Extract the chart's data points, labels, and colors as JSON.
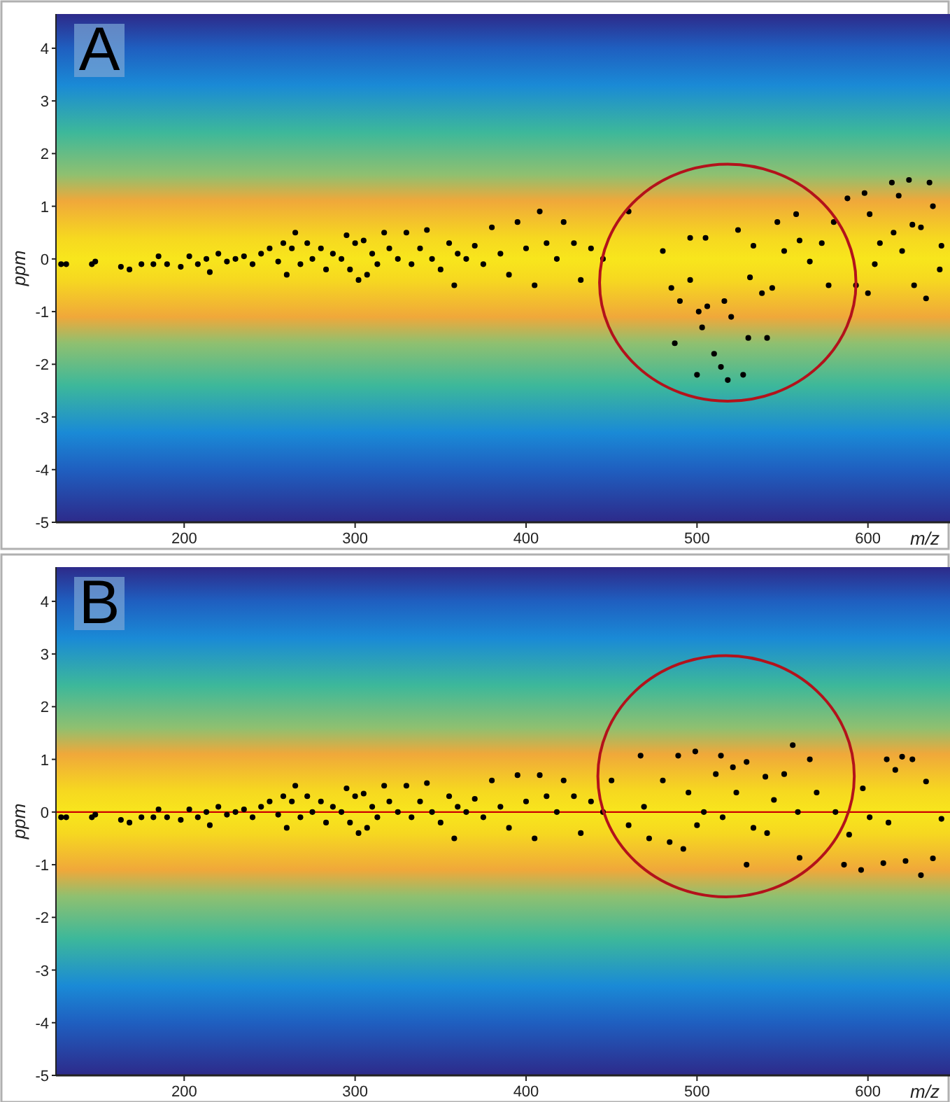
{
  "chart_data": [
    {
      "type": "scatter",
      "title": "A",
      "xlabel": "m/z",
      "ylabel": "ppm",
      "xlim": [
        125,
        648
      ],
      "ylim": [
        -5,
        4.65
      ],
      "xticks": [
        200,
        300,
        400,
        500,
        600
      ],
      "yticks": [
        -5,
        -4,
        -3,
        -2,
        -1,
        0,
        1,
        2,
        3,
        4
      ],
      "marker": "circle",
      "series": [
        {
          "color": "#000000",
          "x": [
            128,
            131,
            146,
            148,
            163,
            168,
            175,
            182,
            185,
            190,
            198,
            203,
            208,
            213,
            215,
            220,
            225,
            230,
            235,
            240,
            245,
            250,
            255,
            258,
            260,
            263,
            265,
            268,
            272,
            275,
            280,
            283,
            287,
            292,
            295,
            297,
            300,
            302,
            305,
            307,
            310,
            313,
            317,
            320,
            325,
            330,
            333,
            338,
            342,
            345,
            350,
            355,
            358,
            360,
            365,
            370,
            375,
            380,
            385,
            390,
            395,
            400,
            405,
            408,
            412,
            418,
            422,
            428,
            432,
            438,
            445,
            460,
            480,
            485,
            490,
            487,
            496,
            496,
            501,
            500,
            505,
            506,
            503,
            510,
            514,
            518,
            516,
            520,
            524,
            527,
            530,
            531,
            533,
            538,
            541,
            544,
            547,
            551,
            558,
            560,
            566,
            573,
            577,
            580,
            588,
            593,
            598,
            601,
            604,
            600,
            607,
            614,
            615,
            618,
            620,
            624,
            626,
            627,
            631,
            634,
            636,
            638,
            642,
            643
          ],
          "values": [
            -0.1,
            -0.1,
            -0.1,
            -0.05,
            -0.15,
            -0.2,
            -0.1,
            -0.1,
            0.05,
            -0.1,
            -0.15,
            0.05,
            -0.1,
            0,
            -0.25,
            0.1,
            -0.05,
            0,
            0.05,
            -0.1,
            0.1,
            0.2,
            -0.05,
            0.3,
            -0.3,
            0.2,
            0.5,
            -0.1,
            0.3,
            0,
            0.2,
            -0.2,
            0.1,
            0,
            0.45,
            -0.2,
            0.3,
            -0.4,
            0.35,
            -0.3,
            0.1,
            -0.1,
            0.5,
            0.2,
            0,
            0.5,
            -0.1,
            0.2,
            0.55,
            0,
            -0.2,
            0.3,
            -0.5,
            0.1,
            0,
            0.25,
            -0.1,
            0.6,
            0.1,
            -0.3,
            0.7,
            0.2,
            -0.5,
            0.9,
            0.3,
            0,
            0.7,
            0.3,
            -0.4,
            0.2,
            0,
            0.9,
            0.15,
            -0.55,
            -0.8,
            -1.6,
            0.4,
            -0.4,
            -1,
            -2.2,
            0.4,
            -0.9,
            -1.3,
            -1.8,
            -2.05,
            -2.3,
            -0.8,
            -1.1,
            0.55,
            -2.2,
            -1.5,
            -0.35,
            0.25,
            -0.65,
            -1.5,
            -0.55,
            0.7,
            0.15,
            0.85,
            0.35,
            -0.05,
            0.3,
            -0.5,
            0.7,
            1.15,
            -0.5,
            1.25,
            0.85,
            -0.1,
            -0.65,
            0.3,
            1.45,
            0.5,
            1.2,
            0.15,
            1.5,
            0.65,
            -0.5,
            0.6,
            -0.75,
            1.45,
            1,
            -0.2,
            0.25
          ]
        }
      ]
    },
    {
      "type": "scatter",
      "title": "B",
      "xlabel": "m/z",
      "ylabel": "ppm",
      "xlim": [
        125,
        648
      ],
      "ylim": [
        -5,
        4.65
      ],
      "xticks": [
        200,
        300,
        400,
        500,
        600
      ],
      "yticks": [
        -5,
        -4,
        -3,
        -2,
        -1,
        0,
        1,
        2,
        3,
        4
      ],
      "marker": "circle",
      "ref_lines": [
        {
          "axis": "y",
          "value": 0,
          "color": "#cc0000"
        }
      ],
      "series": [
        {
          "color": "#000000",
          "x": [
            128,
            131,
            146,
            148,
            163,
            168,
            175,
            182,
            185,
            190,
            198,
            203,
            208,
            213,
            215,
            220,
            225,
            230,
            235,
            240,
            245,
            250,
            255,
            258,
            260,
            263,
            265,
            268,
            272,
            275,
            280,
            283,
            287,
            292,
            295,
            297,
            300,
            302,
            305,
            307,
            310,
            313,
            317,
            320,
            325,
            330,
            333,
            338,
            342,
            345,
            350,
            355,
            358,
            360,
            365,
            370,
            375,
            380,
            385,
            390,
            395,
            400,
            405,
            408,
            412,
            418,
            422,
            428,
            432,
            438,
            445,
            450,
            467,
            460,
            469,
            472,
            480,
            484,
            489,
            492,
            495,
            499,
            500,
            504,
            511,
            514,
            515,
            521,
            523,
            529,
            529,
            533,
            540,
            541,
            545,
            551,
            556,
            559,
            560,
            566,
            570,
            581,
            586,
            589,
            596,
            597,
            601,
            609,
            611,
            612,
            616,
            620,
            622,
            626,
            631,
            634,
            638,
            643
          ],
          "values": [
            -0.1,
            -0.1,
            -0.1,
            -0.05,
            -0.15,
            -0.2,
            -0.1,
            -0.1,
            0.05,
            -0.1,
            -0.15,
            0.05,
            -0.1,
            0,
            -0.25,
            0.1,
            -0.05,
            0,
            0.05,
            -0.1,
            0.1,
            0.2,
            -0.05,
            0.3,
            -0.3,
            0.2,
            0.5,
            -0.1,
            0.3,
            0,
            0.2,
            -0.2,
            0.1,
            0,
            0.45,
            -0.2,
            0.3,
            -0.4,
            0.35,
            -0.3,
            0.1,
            -0.1,
            0.5,
            0.2,
            0,
            0.5,
            -0.1,
            0.2,
            0.55,
            0,
            -0.2,
            0.3,
            -0.5,
            0.1,
            0,
            0.25,
            -0.1,
            0.6,
            0.1,
            -0.3,
            0.7,
            0.2,
            -0.5,
            0.7,
            0.3,
            0,
            0.6,
            0.3,
            -0.4,
            0.2,
            0,
            0.6,
            1.07,
            -0.25,
            0.1,
            -0.5,
            0.6,
            -0.57,
            1.07,
            -0.7,
            0.37,
            1.15,
            -0.25,
            0,
            0.72,
            1.07,
            -0.1,
            0.85,
            0.37,
            -1,
            0.95,
            -0.3,
            0.67,
            -0.4,
            0.23,
            0.72,
            1.27,
            0,
            -0.87,
            1,
            0.37,
            0,
            -1,
            -0.43,
            -1.1,
            0.45,
            -0.1,
            -0.97,
            1,
            -0.2,
            0.8,
            1.05,
            -0.93,
            1,
            -1.2,
            0.58,
            -0.88,
            -0.13
          ]
        }
      ]
    }
  ]
}
